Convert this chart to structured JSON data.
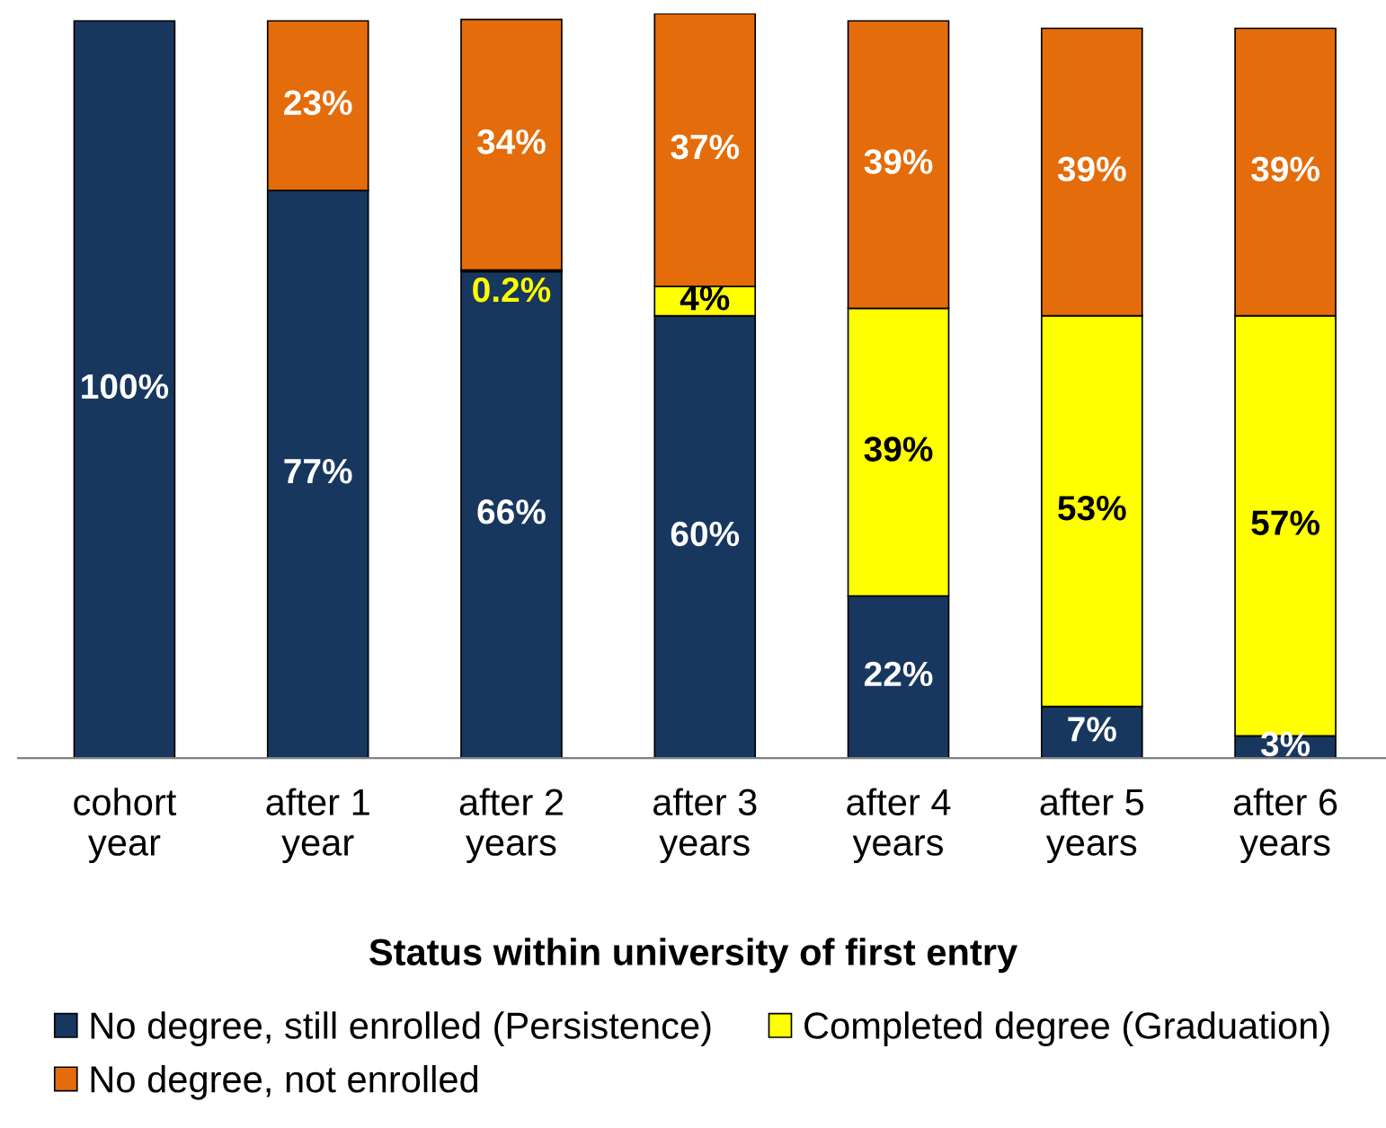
{
  "chart_data": {
    "type": "bar",
    "stacked": true,
    "legend_title": "Status within university of first entry",
    "legend": "bottom",
    "categories": [
      "cohort\nyear",
      "after 1\nyear",
      "after 2\nyears",
      "after 3\nyears",
      "after 4\nyears",
      "after 5\nyears",
      "after 6\nyears"
    ],
    "series": [
      {
        "name": "No degree, still enrolled (Persistence)",
        "color": "#17375e",
        "values": [
          100,
          77,
          66,
          60,
          22,
          7,
          3
        ],
        "value_labels": [
          "100%",
          "77%",
          "66%",
          "60%",
          "22%",
          "7%",
          "3%"
        ]
      },
      {
        "name": "Completed degree (Graduation)",
        "color": "#ffff00",
        "values": [
          null,
          null,
          0.2,
          4,
          39,
          53,
          57
        ],
        "value_labels": [
          null,
          null,
          "0.2%",
          "4%",
          "39%",
          "53%",
          "57%"
        ]
      },
      {
        "name": "No degree, not enrolled",
        "color": "#e46c0a",
        "values": [
          null,
          23,
          34,
          37,
          39,
          39,
          39
        ],
        "value_labels": [
          null,
          "23%",
          "34%",
          "37%",
          "39%",
          "39%",
          "39%"
        ]
      }
    ]
  }
}
